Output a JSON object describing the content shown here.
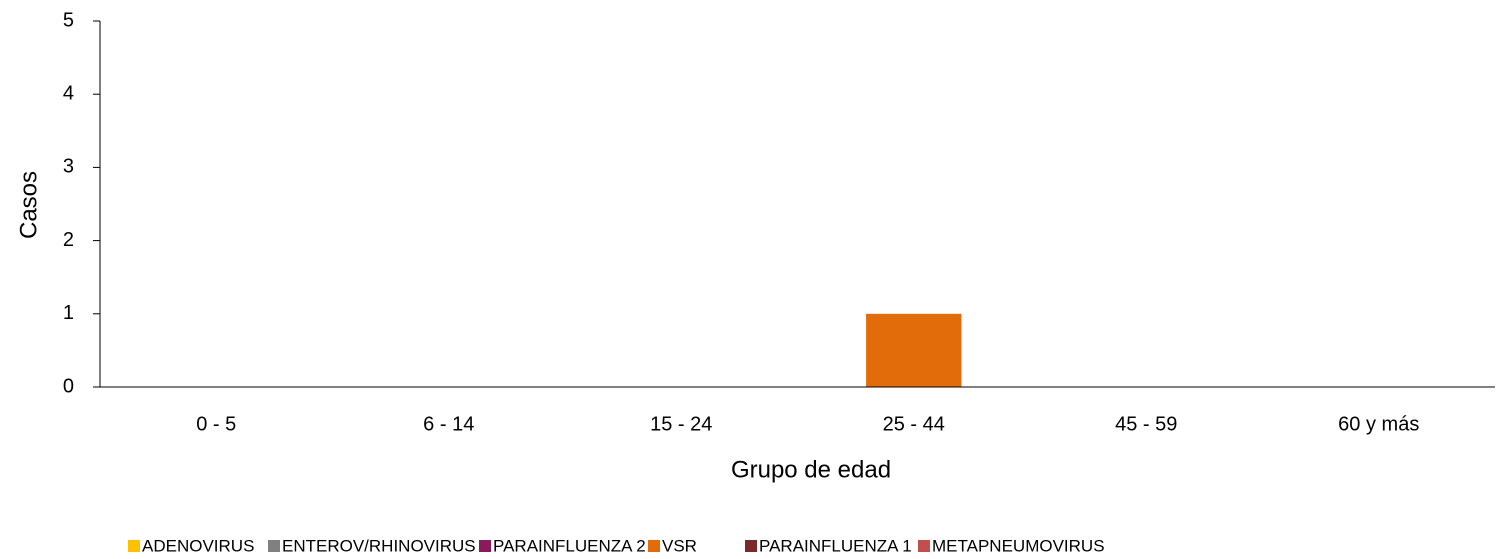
{
  "chart_data": {
    "type": "stacked_bar",
    "x_label": "Grupo de edad",
    "y_label": "Casos",
    "categories": [
      "0 - 5",
      "6 - 14",
      "15 - 24",
      "25 - 44",
      "45 - 59",
      "60 y más"
    ],
    "series": [
      {
        "name": "ADENOVIRUS",
        "color": "#ffc000",
        "values": [
          0,
          0,
          0,
          0,
          0,
          0
        ]
      },
      {
        "name": "ENTEROV/RHINOVIRUS",
        "color": "#808080",
        "values": [
          0,
          0,
          0,
          0,
          0,
          0
        ]
      },
      {
        "name": "PARAINFLUENZA 2",
        "color": "#8b1a5a",
        "values": [
          0,
          0,
          0,
          0,
          0,
          0
        ]
      },
      {
        "name": "VSR",
        "color": "#e36c0a",
        "values": [
          0,
          0,
          0,
          1,
          0,
          0
        ]
      },
      {
        "name": "PARAINFLUENZA 1",
        "color": "#7b2a2a",
        "values": [
          0,
          0,
          0,
          0,
          0,
          0
        ]
      },
      {
        "name": "METAPNEUMOVIRUS",
        "color": "#c0504d",
        "values": [
          0,
          0,
          0,
          0,
          0,
          0
        ]
      }
    ],
    "ylim": [
      0,
      5
    ],
    "yticks": [
      0,
      1,
      2,
      3,
      4,
      5
    ],
    "grid": false,
    "legend": "bottom"
  }
}
